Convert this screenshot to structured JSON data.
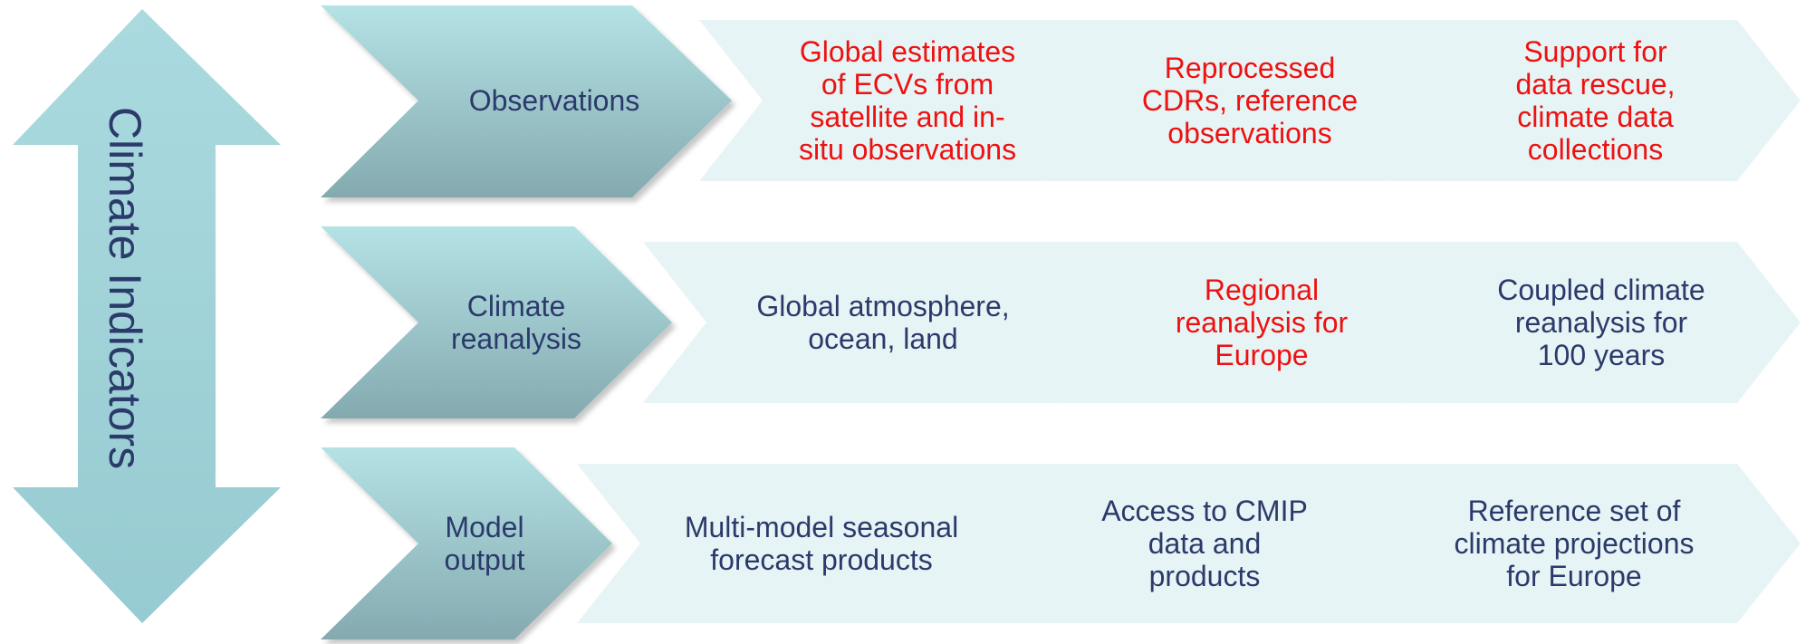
{
  "colors": {
    "primary_text": "#2b3a6b",
    "highlight_text": "#ee1111",
    "arrow_light": "#b2e0e3",
    "arrow_dark": "#86aeb4",
    "chevron_light": "#e7f4f5"
  },
  "side_arrow": {
    "label": "Climate Indicators"
  },
  "rows": [
    {
      "category": "Observations",
      "items": [
        {
          "text": "Global estimates\nof ECVs from\nsatellite and in-\nsitu observations",
          "highlight": true
        },
        {
          "text": "Reprocessed\nCDRs, reference\nobservations",
          "highlight": true
        },
        {
          "text": "Support for\ndata rescue,\nclimate data\ncollections",
          "highlight": true
        }
      ]
    },
    {
      "category": "Climate\nreanalysis",
      "items": [
        {
          "text": "Global atmosphere,\nocean, land",
          "highlight": false
        },
        {
          "text": "Regional\nreanalysis for\nEurope",
          "highlight": true
        },
        {
          "text": "Coupled climate\nreanalysis for\n100 years",
          "highlight": false
        }
      ]
    },
    {
      "category": "Model\noutput",
      "items": [
        {
          "text": "Multi-model seasonal\nforecast products",
          "highlight": false
        },
        {
          "text": "Access to CMIP\ndata and\nproducts",
          "highlight": false
        },
        {
          "text": "Reference set of\nclimate projections\nfor Europe",
          "highlight": false
        }
      ]
    }
  ]
}
